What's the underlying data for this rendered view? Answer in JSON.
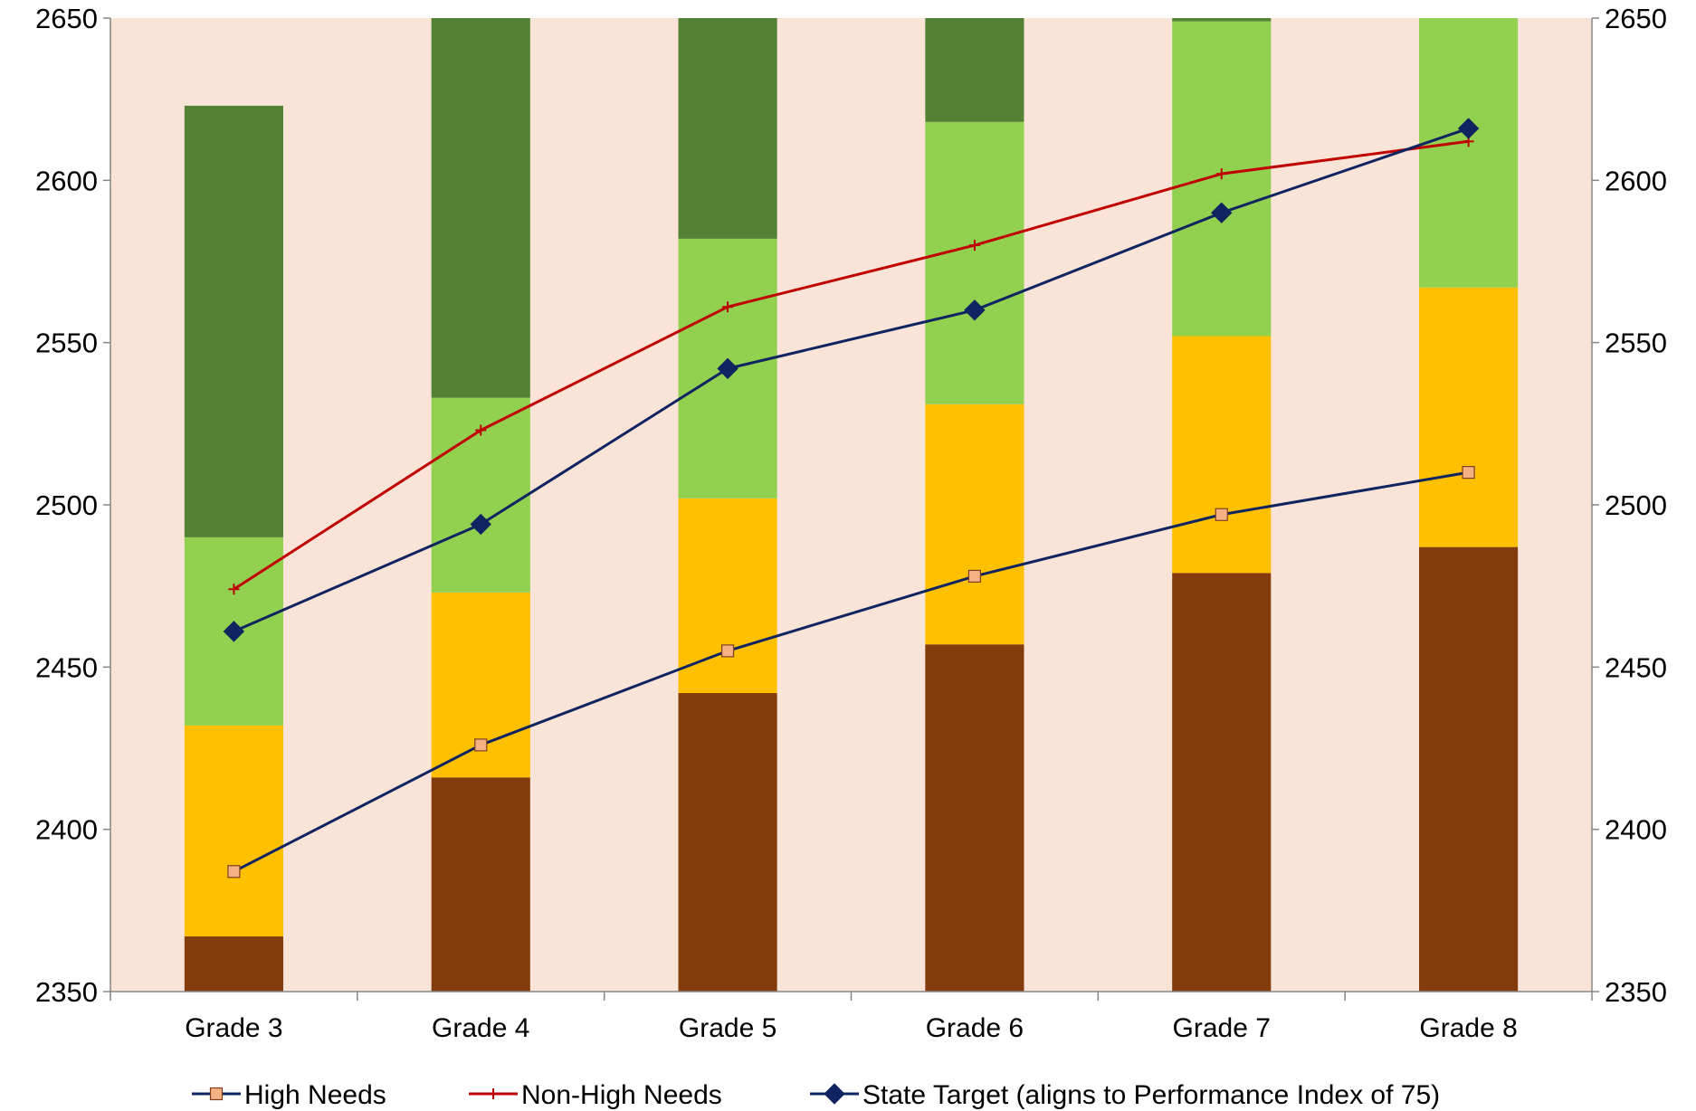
{
  "chart_data": {
    "type": "bar",
    "categories": [
      "Grade 3",
      "Grade 4",
      "Grade 5",
      "Grade 6",
      "Grade 7",
      "Grade 8"
    ],
    "ylim": [
      2350,
      2650
    ],
    "y_ticks": [
      2350,
      2400,
      2450,
      2500,
      2550,
      2600,
      2650
    ],
    "secondary_y_ticks": [
      2350,
      2400,
      2450,
      2500,
      2550,
      2600,
      2650
    ],
    "plot_background": "#FAE4D8",
    "grid": false,
    "legend_position": "bottom",
    "stacked_bands": [
      {
        "color": "#843C0C",
        "tops": [
          2367,
          2416,
          2442,
          2457,
          2479,
          2487
        ]
      },
      {
        "color": "#FFC000",
        "tops": [
          2432,
          2473,
          2502,
          2531,
          2552,
          2567
        ]
      },
      {
        "color": "#92D050",
        "tops": [
          2490,
          2533,
          2582,
          2618,
          2649,
          2650
        ]
      },
      {
        "color": "#548235",
        "tops": [
          2623,
          2650,
          2650,
          2650,
          2650,
          2650
        ]
      }
    ],
    "series": [
      {
        "name": "High Needs",
        "type": "line",
        "color": "#0F2460",
        "marker": "square",
        "marker_color": "#F4B183",
        "values": [
          2387,
          2426,
          2455,
          2478,
          2497,
          2510
        ]
      },
      {
        "name": "Non-High Needs",
        "type": "line",
        "color": "#C00000",
        "marker": "plus",
        "marker_color": "#C00000",
        "values": [
          2474,
          2523,
          2561,
          2580,
          2602,
          2612
        ]
      },
      {
        "name": "State Target (aligns to Performance Index of 75)",
        "type": "line",
        "color": "#0F2460",
        "marker": "diamond",
        "marker_color": "#0F2460",
        "values": [
          2461,
          2494,
          2542,
          2560,
          2590,
          2616
        ]
      }
    ]
  }
}
